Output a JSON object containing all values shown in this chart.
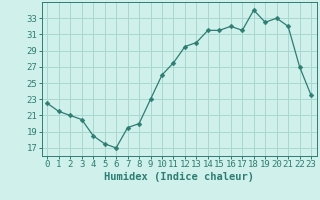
{
  "x": [
    0,
    1,
    2,
    3,
    4,
    5,
    6,
    7,
    8,
    9,
    10,
    11,
    12,
    13,
    14,
    15,
    16,
    17,
    18,
    19,
    20,
    21,
    22,
    23
  ],
  "y": [
    22.5,
    21.5,
    21.0,
    20.5,
    18.5,
    17.5,
    17.0,
    19.5,
    20.0,
    23.0,
    26.0,
    27.5,
    29.5,
    30.0,
    31.5,
    31.5,
    32.0,
    31.5,
    34.0,
    32.5,
    33.0,
    32.0,
    27.0,
    23.5
  ],
  "line_color": "#2e7d72",
  "marker": "D",
  "marker_size": 2.5,
  "bg_color": "#cff0eb",
  "grid_color": "#a8d8d0",
  "axis_color": "#2e7d72",
  "xlabel": "Humidex (Indice chaleur)",
  "xlim": [
    -0.5,
    23.5
  ],
  "ylim": [
    16,
    35
  ],
  "yticks": [
    17,
    19,
    21,
    23,
    25,
    27,
    29,
    31,
    33
  ],
  "tick_fontsize": 6.5,
  "label_fontsize": 7.5
}
